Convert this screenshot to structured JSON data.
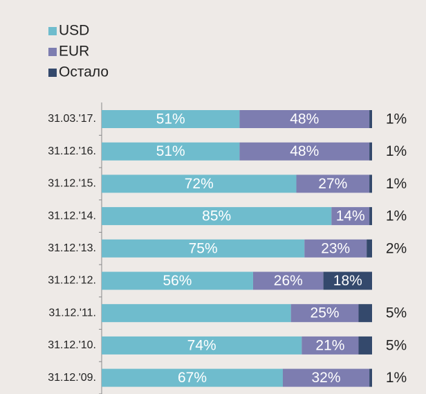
{
  "chart_data": {
    "type": "stacked-bar",
    "orientation": "horizontal",
    "categories": [
      "31.03.'17.",
      "31.12.'16.",
      "31.12.'15.",
      "31.12.'14.",
      "31.12.'13.",
      "31.12.'12.",
      "31.12.'11.",
      "31.12.'10.",
      "31.12.'09."
    ],
    "series": [
      {
        "name": "USD",
        "color": "#6fbccd",
        "values": [
          51,
          51,
          72,
          85,
          75,
          56,
          70,
          74,
          67
        ],
        "value_labels": [
          "51%",
          "51%",
          "72%",
          "85%",
          "75%",
          "56%",
          null,
          "74%",
          "67%"
        ]
      },
      {
        "name": "EUR",
        "color": "#7d7db0",
        "values": [
          48,
          48,
          27,
          14,
          23,
          26,
          25,
          21,
          32
        ],
        "value_labels": [
          "48%",
          "48%",
          "27%",
          "14%",
          "23%",
          "26%",
          "25%",
          "21%",
          "32%"
        ]
      },
      {
        "name": "Остало",
        "color": "#34496c",
        "values": [
          1,
          1,
          1,
          1,
          2,
          18,
          5,
          5,
          1
        ],
        "value_labels": [
          "1%",
          "1%",
          "1%",
          "1%",
          "2%",
          "18%",
          "5%",
          "5%",
          "1%"
        ]
      }
    ],
    "xlim": [
      0,
      100
    ],
    "legend": "top-left"
  }
}
